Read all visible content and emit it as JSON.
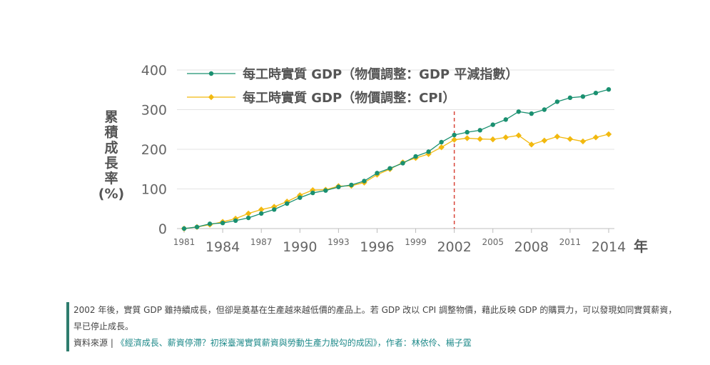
{
  "chart_data": {
    "type": "line",
    "title": "",
    "ylabel_chars": [
      "累",
      "積",
      "成",
      "長",
      "率",
      "(%)"
    ],
    "xlabel": "年",
    "ylim": [
      0,
      400
    ],
    "yticks": [
      "0",
      "100",
      "200",
      "300",
      "400"
    ],
    "xlim": [
      1981,
      2014
    ],
    "xticks": [
      {
        "year": 1981,
        "label": "1981",
        "size": "small"
      },
      {
        "year": 1984,
        "label": "1984",
        "size": "large"
      },
      {
        "year": 1987,
        "label": "1987",
        "size": "small"
      },
      {
        "year": 1990,
        "label": "1990",
        "size": "large"
      },
      {
        "year": 1993,
        "label": "1993",
        "size": "small"
      },
      {
        "year": 1996,
        "label": "1996",
        "size": "large"
      },
      {
        "year": 1999,
        "label": "1999",
        "size": "small"
      },
      {
        "year": 2002,
        "label": "2002",
        "size": "large"
      },
      {
        "year": 2005,
        "label": "2005",
        "size": "small"
      },
      {
        "year": 2008,
        "label": "2008",
        "size": "large"
      },
      {
        "year": 2011,
        "label": "2011",
        "size": "small"
      },
      {
        "year": 2014,
        "label": "2014",
        "size": "large"
      }
    ],
    "grid": "horizontal",
    "legend_position": "top-left",
    "reference_line": {
      "x": 2002,
      "color": "#d9453a",
      "style": "dashed"
    },
    "x": [
      1981,
      1982,
      1983,
      1984,
      1985,
      1986,
      1987,
      1988,
      1989,
      1990,
      1991,
      1992,
      1993,
      1994,
      1995,
      1996,
      1997,
      1998,
      1999,
      2000,
      2001,
      2002,
      2003,
      2004,
      2005,
      2006,
      2007,
      2008,
      2009,
      2010,
      2011,
      2012,
      2013,
      2014
    ],
    "series": [
      {
        "name": "每工時實質 GDP（物價調整：GDP 平減指數）",
        "color": "#1a9070",
        "marker": "circle",
        "values": [
          0,
          4,
          12,
          14,
          20,
          27,
          38,
          48,
          63,
          78,
          90,
          96,
          105,
          110,
          120,
          140,
          152,
          165,
          182,
          194,
          218,
          236,
          243,
          248,
          262,
          275,
          295,
          290,
          300,
          320,
          330,
          333,
          342,
          351
        ]
      },
      {
        "name": "每工時實質 GDP（物價調整：CPI）",
        "color": "#f2b90f",
        "marker": "diamond",
        "values": [
          0,
          4,
          10,
          17,
          25,
          38,
          48,
          55,
          68,
          84,
          97,
          98,
          107,
          108,
          116,
          136,
          150,
          167,
          178,
          188,
          205,
          224,
          228,
          226,
          225,
          230,
          235,
          212,
          222,
          232,
          226,
          220,
          230,
          238
        ]
      }
    ]
  },
  "caption": {
    "text": "2002 年後，實質 GDP 雖持續成長，但卻是奠基在生產越來越低價的產品上。若 GDP 改以 CPI 調整物價，藉此反映 GDP 的購買力，可以發現如同實質薪資，早已停止成長。",
    "source_prefix": "資料來源 | ",
    "source_link": "《經濟成長、薪資停滯？初探臺灣實質薪資與勞動生產力脫勾的成因》，作者：林依伶、楊子霆"
  }
}
